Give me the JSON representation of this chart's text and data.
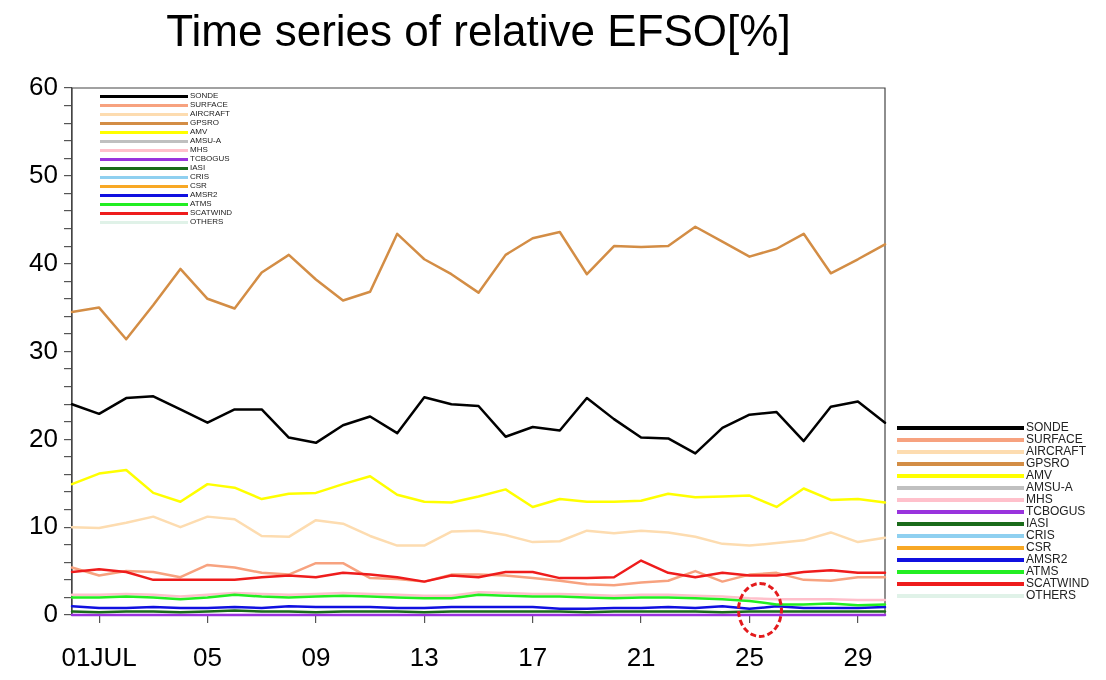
{
  "chart_data": {
    "type": "line",
    "title": "Time series of relative EFSO[%]",
    "x": [
      "--06-30",
      "--07-01",
      "--07-02",
      "--07-03",
      "--07-04",
      "--07-05",
      "--07-06",
      "--07-07",
      "--07-08",
      "--07-09",
      "--07-10",
      "--07-11",
      "--07-12",
      "--07-13",
      "--07-14",
      "--07-15",
      "--07-16",
      "--07-17",
      "--07-18",
      "--07-19",
      "--07-20",
      "--07-21",
      "--07-22",
      "--07-23",
      "--07-24",
      "--07-25",
      "--07-26",
      "--07-27",
      "--07-28",
      "--07-29",
      "--07-30"
    ],
    "xlim": [
      "--06-30",
      "--07-30"
    ],
    "xticks": [
      {
        "value": "--07-01",
        "label": "01JUL"
      },
      {
        "value": "--07-05",
        "label": "05"
      },
      {
        "value": "--07-09",
        "label": "09"
      },
      {
        "value": "--07-13",
        "label": "13"
      },
      {
        "value": "--07-17",
        "label": "17"
      },
      {
        "value": "--07-21",
        "label": "21"
      },
      {
        "value": "--07-25",
        "label": "25"
      },
      {
        "value": "--07-29",
        "label": "29"
      }
    ],
    "ylim": [
      0,
      60
    ],
    "yticks": [
      0,
      {
        "value": 2,
        "label": null
      },
      {
        "value": 4,
        "label": null
      },
      {
        "value": 6,
        "label": null
      },
      {
        "value": 8,
        "label": null
      },
      10,
      {
        "value": 12,
        "label": null
      },
      {
        "value": 14,
        "label": null
      },
      {
        "value": 16,
        "label": null
      },
      {
        "value": 18,
        "label": null
      },
      20,
      {
        "value": 22,
        "label": null
      },
      {
        "value": 24,
        "label": null
      },
      {
        "value": 26,
        "label": null
      },
      {
        "value": 28,
        "label": null
      },
      30,
      {
        "value": 32,
        "label": null
      },
      {
        "value": 34,
        "label": null
      },
      {
        "value": 36,
        "label": null
      },
      {
        "value": 38,
        "label": null
      },
      40,
      {
        "value": 42,
        "label": null
      },
      {
        "value": 44,
        "label": null
      },
      {
        "value": 46,
        "label": null
      },
      {
        "value": 48,
        "label": null
      },
      50,
      {
        "value": 52,
        "label": null
      },
      {
        "value": 54,
        "label": null
      },
      {
        "value": 56,
        "label": null
      },
      {
        "value": 58,
        "label": null
      },
      60
    ],
    "legend": "right",
    "marker": "none",
    "line_style": "solid",
    "series": [
      {
        "name": "SONDE",
        "color": "#000000",
        "values": [
          24.0,
          22.9,
          24.7,
          24.9,
          23.4,
          21.9,
          23.4,
          23.4,
          20.2,
          19.6,
          21.6,
          22.6,
          20.7,
          24.8,
          24.0,
          23.8,
          20.3,
          21.4,
          21.0,
          24.7,
          22.3,
          20.2,
          20.1,
          18.4,
          21.3,
          22.8,
          23.1,
          19.8,
          23.7,
          24.3,
          21.9
        ]
      },
      {
        "name": "SURFACE",
        "color": "#f7a27f",
        "values": [
          5.4,
          4.5,
          5.0,
          4.9,
          4.3,
          5.7,
          5.4,
          4.8,
          4.6,
          5.9,
          5.9,
          4.2,
          4.1,
          3.8,
          4.6,
          4.6,
          4.5,
          4.2,
          3.9,
          3.5,
          3.4,
          3.7,
          3.9,
          5.0,
          3.8,
          4.6,
          4.8,
          4.0,
          3.9,
          4.3,
          4.3
        ]
      },
      {
        "name": "AIRCRAFT",
        "color": "#fddcb0",
        "values": [
          10.0,
          9.9,
          10.5,
          11.2,
          10.0,
          11.2,
          10.9,
          9.0,
          8.9,
          10.8,
          10.4,
          9.0,
          7.9,
          7.9,
          9.5,
          9.6,
          9.1,
          8.3,
          8.4,
          9.6,
          9.3,
          9.6,
          9.4,
          8.9,
          8.1,
          7.9,
          8.2,
          8.5,
          9.4,
          8.3,
          8.8
        ]
      },
      {
        "name": "GPSRO",
        "color": "#d38d45",
        "values": [
          34.5,
          35.0,
          31.4,
          35.3,
          39.4,
          36.0,
          34.9,
          39.0,
          41.0,
          38.2,
          35.8,
          36.8,
          43.4,
          40.5,
          38.8,
          36.7,
          41.0,
          42.9,
          43.6,
          38.8,
          42.0,
          41.9,
          42.0,
          44.2,
          42.5,
          40.8,
          41.7,
          43.4,
          38.9,
          40.5,
          42.2
        ]
      },
      {
        "name": "AMV",
        "color": "#ffff00",
        "values": [
          14.9,
          16.1,
          16.5,
          13.9,
          12.9,
          14.9,
          14.5,
          13.2,
          13.8,
          13.9,
          14.9,
          15.8,
          13.7,
          12.9,
          12.8,
          13.5,
          14.3,
          12.3,
          13.2,
          12.9,
          12.9,
          13.0,
          13.8,
          13.4,
          13.5,
          13.6,
          12.3,
          14.4,
          13.1,
          13.2,
          12.8
        ]
      },
      {
        "name": "AMSU-A",
        "color": "#c0c0c0",
        "values": [
          null,
          null,
          null,
          null,
          null,
          null,
          null,
          null,
          null,
          null,
          null,
          null,
          null,
          null,
          null,
          null,
          null,
          null,
          null,
          null,
          null,
          null,
          null,
          null,
          null,
          null,
          null,
          null,
          null,
          null,
          null
        ]
      },
      {
        "name": "MHS",
        "color": "#ffc0cb",
        "values": [
          2.3,
          2.3,
          2.4,
          2.3,
          2.1,
          2.3,
          2.5,
          2.4,
          2.3,
          2.4,
          2.5,
          2.4,
          2.3,
          2.2,
          2.2,
          2.6,
          2.5,
          2.4,
          2.4,
          2.3,
          2.2,
          2.3,
          2.3,
          2.2,
          2.1,
          1.9,
          1.8,
          1.8,
          1.8,
          1.7,
          1.7
        ]
      },
      {
        "name": "TCBOGUS",
        "color": "#9933dd",
        "values": [
          0,
          0,
          0,
          0,
          0,
          0,
          0,
          0,
          0,
          0,
          0,
          0,
          0,
          0,
          0,
          0,
          0,
          0,
          0,
          0,
          0,
          0,
          0,
          0,
          0,
          0,
          0,
          0,
          0,
          0,
          0
        ]
      },
      {
        "name": "IASI",
        "color": "#1a6b1a",
        "values": [
          0.4,
          0.3,
          0.4,
          0.4,
          0.3,
          0.4,
          0.5,
          0.4,
          0.4,
          0.3,
          0.4,
          0.4,
          0.4,
          0.3,
          0.4,
          0.4,
          0.4,
          0.4,
          0.4,
          0.3,
          0.4,
          0.4,
          0.4,
          0.4,
          0.3,
          0.4,
          0.4,
          0.4,
          0.4,
          0.4,
          0.4
        ]
      },
      {
        "name": "CRIS",
        "color": "#8fd0f0",
        "values": [
          null,
          null,
          null,
          null,
          null,
          null,
          null,
          null,
          null,
          null,
          null,
          null,
          null,
          null,
          null,
          null,
          null,
          null,
          null,
          null,
          null,
          null,
          null,
          null,
          null,
          null,
          null,
          null,
          null,
          null,
          null
        ]
      },
      {
        "name": "CSR",
        "color": "#f8a825",
        "values": [
          null,
          null,
          null,
          null,
          null,
          null,
          null,
          null,
          null,
          null,
          null,
          null,
          null,
          null,
          null,
          null,
          null,
          null,
          null,
          null,
          null,
          null,
          null,
          null,
          null,
          null,
          null,
          null,
          null,
          null,
          null
        ]
      },
      {
        "name": "AMSR2",
        "color": "#1010e0",
        "values": [
          1.0,
          0.8,
          0.8,
          0.9,
          0.8,
          0.8,
          0.9,
          0.8,
          1.0,
          0.9,
          0.9,
          0.9,
          0.8,
          0.8,
          0.9,
          0.9,
          0.9,
          0.9,
          0.7,
          0.7,
          0.8,
          0.8,
          0.9,
          0.8,
          1.0,
          0.7,
          1.0,
          0.8,
          0.8,
          0.8,
          0.9
        ]
      },
      {
        "name": "ATMS",
        "color": "#22ee22",
        "values": [
          2.0,
          2.0,
          2.1,
          2.0,
          1.8,
          2.0,
          2.3,
          2.1,
          2.0,
          2.1,
          2.2,
          2.1,
          2.0,
          1.9,
          1.9,
          2.3,
          2.2,
          2.1,
          2.1,
          2.0,
          1.9,
          2.0,
          2.0,
          1.9,
          1.8,
          1.6,
          1.2,
          1.2,
          1.3,
          1.1,
          1.2
        ]
      },
      {
        "name": "SCATWIND",
        "color": "#ee1c1c",
        "values": [
          4.9,
          5.2,
          4.9,
          4.0,
          4.0,
          4.0,
          4.0,
          4.3,
          4.5,
          4.3,
          4.8,
          4.6,
          4.3,
          3.8,
          4.5,
          4.3,
          4.9,
          4.9,
          4.2,
          4.2,
          4.3,
          6.2,
          4.8,
          4.3,
          4.8,
          4.5,
          4.5,
          4.9,
          5.1,
          4.8,
          4.8
        ]
      },
      {
        "name": "OTHERS",
        "color": "#e0f2e8",
        "values": [
          null,
          null,
          null,
          null,
          null,
          null,
          null,
          null,
          null,
          null,
          null,
          null,
          null,
          null,
          null,
          null,
          null,
          null,
          null,
          null,
          null,
          null,
          null,
          null,
          null,
          null,
          null,
          null,
          null,
          null,
          null
        ]
      }
    ]
  }
}
